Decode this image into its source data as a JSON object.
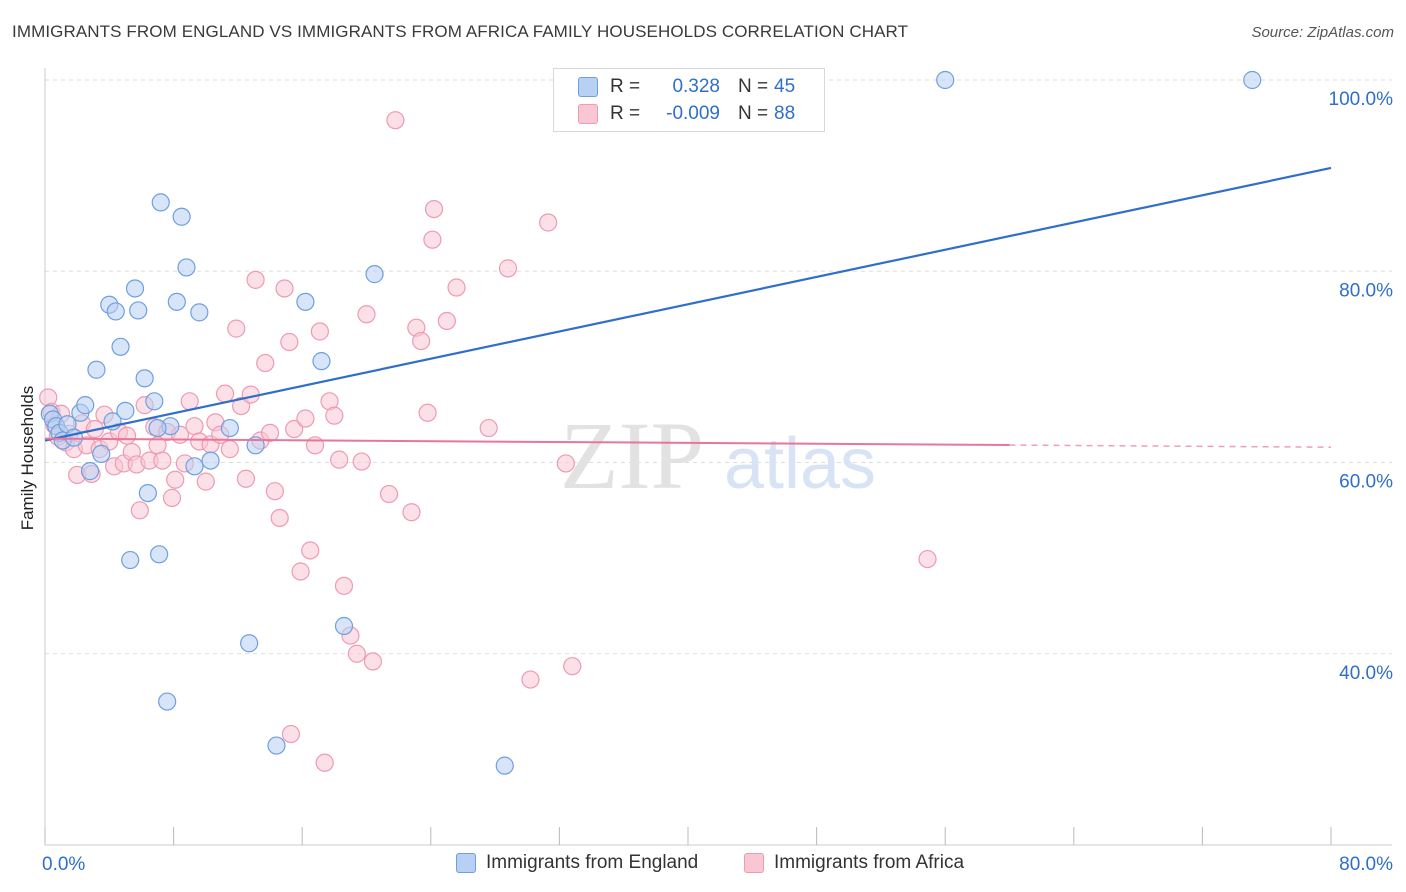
{
  "title": "IMMIGRANTS FROM ENGLAND VS IMMIGRANTS FROM AFRICA FAMILY HOUSEHOLDS CORRELATION CHART",
  "source": "Source: ZipAtlas.com",
  "legend_top": {
    "rows": [
      {
        "r_label": "R =",
        "r_value": "0.328",
        "n_label": "N =",
        "n_value": "45"
      },
      {
        "r_label": "R =",
        "r_value": "-0.009",
        "n_label": "N =",
        "n_value": "88"
      }
    ]
  },
  "legend_bottom": {
    "england": "Immigrants from England",
    "africa": "Immigrants from Africa"
  },
  "colors": {
    "england_fill": "#b8d0f3",
    "england_stroke": "#6e9fe0",
    "england_line": "#2f6fcb",
    "africa_fill": "#f9c6d4",
    "africa_stroke": "#ee9ab3",
    "africa_line": "#e8759a",
    "axis_text": "#2f6fcb",
    "grid": "#dddddd"
  },
  "chart_data": {
    "type": "scatter",
    "title": "IMMIGRANTS FROM ENGLAND VS IMMIGRANTS FROM AFRICA FAMILY HOUSEHOLDS CORRELATION CHART",
    "xlabel": "",
    "ylabel": "Family Households",
    "xlim": [
      0,
      80
    ],
    "ylim": [
      20,
      102
    ],
    "x_tick_labels": [
      "0.0%",
      "80.0%"
    ],
    "y_ticks": [
      40,
      60,
      80,
      100
    ],
    "y_tick_labels": [
      "40.0%",
      "60.0%",
      "80.0%",
      "100.0%"
    ],
    "watermark": {
      "zip": "ZIP",
      "atlas": "atlas"
    },
    "series": [
      {
        "name": "Immigrants from England",
        "R": 0.328,
        "N": 45,
        "trend": {
          "x": [
            0,
            80
          ],
          "y": [
            62.3,
            90.8
          ],
          "dashed_from": null
        },
        "points": [
          [
            0.3,
            65.1
          ],
          [
            0.5,
            64.5
          ],
          [
            0.7,
            63.8
          ],
          [
            0.9,
            63.1
          ],
          [
            1.1,
            62.3
          ],
          [
            1.4,
            64.0
          ],
          [
            1.8,
            62.6
          ],
          [
            2.2,
            65.2
          ],
          [
            2.5,
            66.0
          ],
          [
            2.8,
            59.1
          ],
          [
            3.2,
            69.7
          ],
          [
            3.5,
            60.9
          ],
          [
            4.0,
            76.5
          ],
          [
            4.2,
            64.3
          ],
          [
            4.4,
            75.8
          ],
          [
            4.7,
            72.1
          ],
          [
            5.0,
            65.4
          ],
          [
            5.3,
            49.8
          ],
          [
            5.6,
            78.2
          ],
          [
            5.8,
            75.9
          ],
          [
            6.2,
            68.8
          ],
          [
            6.4,
            56.8
          ],
          [
            6.8,
            66.4
          ],
          [
            7.1,
            50.4
          ],
          [
            7.2,
            87.2
          ],
          [
            7.6,
            35.0
          ],
          [
            7.8,
            63.8
          ],
          [
            8.2,
            76.8
          ],
          [
            8.5,
            85.7
          ],
          [
            8.8,
            80.4
          ],
          [
            9.3,
            59.6
          ],
          [
            9.6,
            75.7
          ],
          [
            10.3,
            60.2
          ],
          [
            11.5,
            63.6
          ],
          [
            12.7,
            41.1
          ],
          [
            13.1,
            61.8
          ],
          [
            14.4,
            30.4
          ],
          [
            16.2,
            76.8
          ],
          [
            17.2,
            70.6
          ],
          [
            18.6,
            42.9
          ],
          [
            20.5,
            79.7
          ],
          [
            28.6,
            28.3
          ],
          [
            56.0,
            100.0
          ],
          [
            75.1,
            100.0
          ],
          [
            7.0,
            63.6
          ]
        ]
      },
      {
        "name": "Immigrants from Africa",
        "R": -0.009,
        "N": 88,
        "trend": {
          "x": [
            0,
            80
          ],
          "y": [
            62.5,
            61.6
          ],
          "dashed_from": 60
        },
        "points": [
          [
            0.2,
            66.8
          ],
          [
            0.4,
            65.3
          ],
          [
            0.6,
            63.9
          ],
          [
            0.8,
            62.7
          ],
          [
            1.0,
            65.1
          ],
          [
            1.3,
            62.1
          ],
          [
            1.5,
            63.0
          ],
          [
            1.8,
            61.4
          ],
          [
            2.0,
            58.7
          ],
          [
            2.3,
            64.1
          ],
          [
            2.6,
            61.8
          ],
          [
            2.9,
            58.8
          ],
          [
            3.1,
            63.5
          ],
          [
            3.4,
            61.4
          ],
          [
            3.7,
            65.0
          ],
          [
            4.0,
            62.2
          ],
          [
            4.3,
            59.6
          ],
          [
            4.6,
            63.2
          ],
          [
            4.9,
            59.9
          ],
          [
            5.1,
            62.8
          ],
          [
            5.4,
            61.1
          ],
          [
            5.7,
            59.8
          ],
          [
            5.9,
            55.0
          ],
          [
            6.2,
            66.0
          ],
          [
            6.5,
            60.2
          ],
          [
            6.8,
            63.7
          ],
          [
            7.0,
            61.8
          ],
          [
            7.3,
            60.2
          ],
          [
            7.6,
            63.2
          ],
          [
            7.9,
            56.3
          ],
          [
            8.1,
            58.2
          ],
          [
            8.4,
            62.9
          ],
          [
            8.7,
            59.9
          ],
          [
            9.0,
            66.4
          ],
          [
            9.3,
            63.8
          ],
          [
            9.6,
            62.2
          ],
          [
            10.0,
            58.0
          ],
          [
            10.3,
            61.9
          ],
          [
            10.6,
            64.2
          ],
          [
            10.9,
            62.9
          ],
          [
            11.2,
            67.2
          ],
          [
            11.5,
            61.4
          ],
          [
            11.9,
            74.0
          ],
          [
            12.2,
            65.9
          ],
          [
            12.5,
            58.3
          ],
          [
            12.8,
            67.1
          ],
          [
            13.1,
            79.1
          ],
          [
            13.4,
            62.3
          ],
          [
            13.7,
            70.4
          ],
          [
            14.0,
            63.1
          ],
          [
            14.3,
            57.0
          ],
          [
            14.6,
            54.2
          ],
          [
            14.9,
            78.2
          ],
          [
            15.2,
            72.6
          ],
          [
            15.5,
            63.5
          ],
          [
            15.9,
            48.6
          ],
          [
            16.2,
            64.6
          ],
          [
            16.5,
            50.8
          ],
          [
            16.8,
            61.8
          ],
          [
            17.1,
            73.7
          ],
          [
            17.4,
            28.6
          ],
          [
            17.7,
            66.4
          ],
          [
            18.0,
            64.9
          ],
          [
            18.3,
            60.3
          ],
          [
            18.6,
            47.1
          ],
          [
            19.0,
            41.9
          ],
          [
            19.4,
            40.0
          ],
          [
            19.7,
            60.1
          ],
          [
            20.0,
            75.5
          ],
          [
            20.4,
            39.2
          ],
          [
            21.4,
            56.7
          ],
          [
            21.8,
            95.8
          ],
          [
            22.8,
            54.8
          ],
          [
            23.1,
            74.1
          ],
          [
            23.4,
            72.7
          ],
          [
            23.8,
            65.2
          ],
          [
            24.1,
            83.3
          ],
          [
            24.2,
            86.5
          ],
          [
            25.0,
            74.8
          ],
          [
            25.6,
            78.3
          ],
          [
            27.6,
            63.6
          ],
          [
            28.8,
            80.3
          ],
          [
            30.2,
            37.3
          ],
          [
            31.3,
            85.1
          ],
          [
            32.4,
            59.9
          ],
          [
            32.8,
            38.7
          ],
          [
            54.9,
            49.9
          ],
          [
            15.3,
            31.6
          ]
        ]
      }
    ]
  }
}
